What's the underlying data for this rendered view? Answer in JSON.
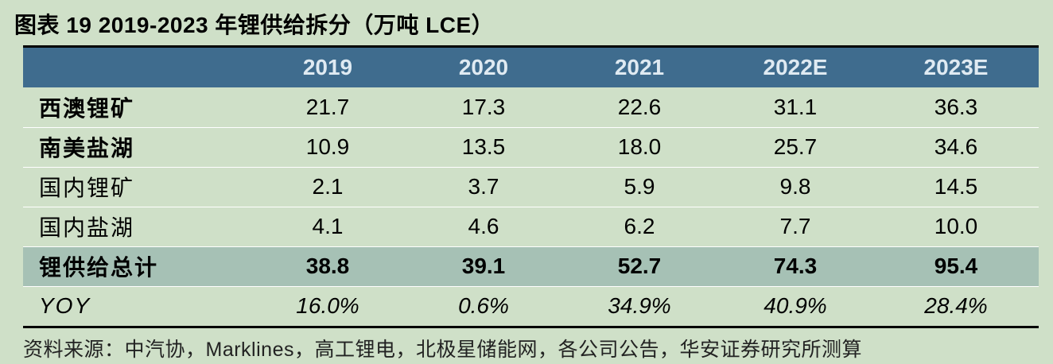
{
  "title": "图表 19 2019-2023 年锂供给拆分（万吨 LCE）",
  "table": {
    "headers": [
      "",
      "2019",
      "2020",
      "2021",
      "2022E",
      "2023E"
    ],
    "rows": [
      {
        "label": "西澳锂矿",
        "values": [
          "21.7",
          "17.3",
          "22.6",
          "31.1",
          "36.3"
        ]
      },
      {
        "label": "南美盐湖",
        "values": [
          "10.9",
          "13.5",
          "18.0",
          "25.7",
          "34.6"
        ]
      },
      {
        "label": "国内锂矿",
        "values": [
          "2.1",
          "3.7",
          "5.9",
          "9.8",
          "14.5"
        ]
      },
      {
        "label": "国内盐湖",
        "values": [
          "4.1",
          "4.6",
          "6.2",
          "7.7",
          "10.0"
        ]
      },
      {
        "label": "锂供给总计",
        "values": [
          "38.8",
          "39.1",
          "52.7",
          "74.3",
          "95.4"
        ]
      },
      {
        "label": "YOY",
        "values": [
          "16.0%",
          "0.6%",
          "34.9%",
          "40.9%",
          "28.4%"
        ]
      }
    ]
  },
  "source": "资料来源：中汽协，Marklines，高工锂电，北极星储能网，各公司公告，华安证券研究所测算",
  "colors": {
    "background": "#cfe0c8",
    "header_bg": "#3f6c8e",
    "header_text": "#dfeaf2",
    "total_bg": "#a6c1b5"
  }
}
